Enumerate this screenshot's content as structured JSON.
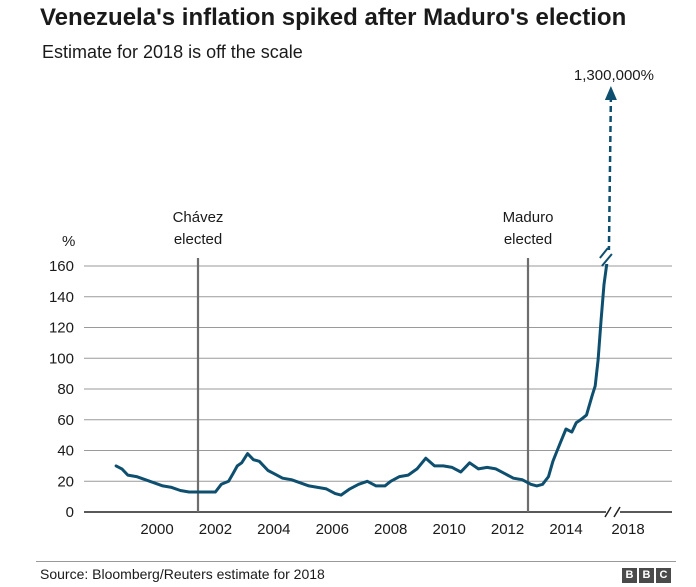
{
  "chart_data": {
    "type": "line",
    "title": "Venezuela's inflation spiked after Maduro's election",
    "subtitle": "Estimate for 2018 is off the scale",
    "ylabel": "%",
    "xlabel": "",
    "ylim": [
      0,
      160
    ],
    "y_ticks": [
      0,
      20,
      40,
      60,
      80,
      100,
      120,
      140,
      160
    ],
    "x_ticks": [
      "2000",
      "2002",
      "2004",
      "2006",
      "2008",
      "2010",
      "2012",
      "2014",
      "2018"
    ],
    "grid": true,
    "series": [
      {
        "name": "Inflation",
        "color": "#0e4f6f",
        "x": [
          1998.6,
          1998.8,
          1999.0,
          1999.3,
          1999.6,
          1999.9,
          2000.2,
          2000.5,
          2000.8,
          2001.1,
          2001.4,
          2001.7,
          2002.0,
          2002.2,
          2002.45,
          2002.6,
          2002.75,
          2002.9,
          2003.1,
          2003.3,
          2003.5,
          2003.8,
          2004.0,
          2004.3,
          2004.6,
          2004.9,
          2005.2,
          2005.5,
          2005.8,
          2006.1,
          2006.3,
          2006.6,
          2006.9,
          2007.2,
          2007.5,
          2007.8,
          2008.0,
          2008.3,
          2008.6,
          2008.9,
          2009.2,
          2009.5,
          2009.8,
          2010.1,
          2010.4,
          2010.7,
          2011.0,
          2011.3,
          2011.6,
          2011.9,
          2012.2,
          2012.5,
          2012.8,
          2013.0,
          2013.2,
          2013.4,
          2013.55,
          2013.7,
          2013.85,
          2014.0,
          2014.2,
          2014.35,
          2014.5,
          2014.7,
          2014.9,
          2015.0,
          2015.1,
          2015.2,
          2015.3,
          2015.4
        ],
        "values": [
          30,
          28,
          24,
          23,
          21,
          19,
          17,
          16,
          14,
          13,
          13,
          13,
          13,
          18,
          20,
          25,
          30,
          32,
          38,
          34,
          33,
          27,
          25,
          22,
          21,
          19,
          17,
          16,
          15,
          12,
          11,
          15,
          18,
          20,
          17,
          17,
          20,
          23,
          24,
          28,
          35,
          30,
          30,
          29,
          26,
          32,
          28,
          29,
          28,
          25,
          22,
          21,
          18,
          17,
          18,
          23,
          33,
          40,
          47,
          54,
          52,
          58,
          60,
          63,
          76,
          82,
          99,
          125,
          148,
          162
        ]
      }
    ],
    "annotations": [
      {
        "label_line1": "Chávez",
        "label_line2": "elected",
        "x": 2002.0
      },
      {
        "label_line1": "Maduro",
        "label_line2": "elected",
        "x": 2013.2
      },
      {
        "label": "1,300,000%"
      }
    ],
    "break_symbol": "//"
  },
  "footer": {
    "source": "Source: Bloomberg/Reuters estimate for 2018",
    "logo_letters": [
      "B",
      "B",
      "C"
    ]
  }
}
